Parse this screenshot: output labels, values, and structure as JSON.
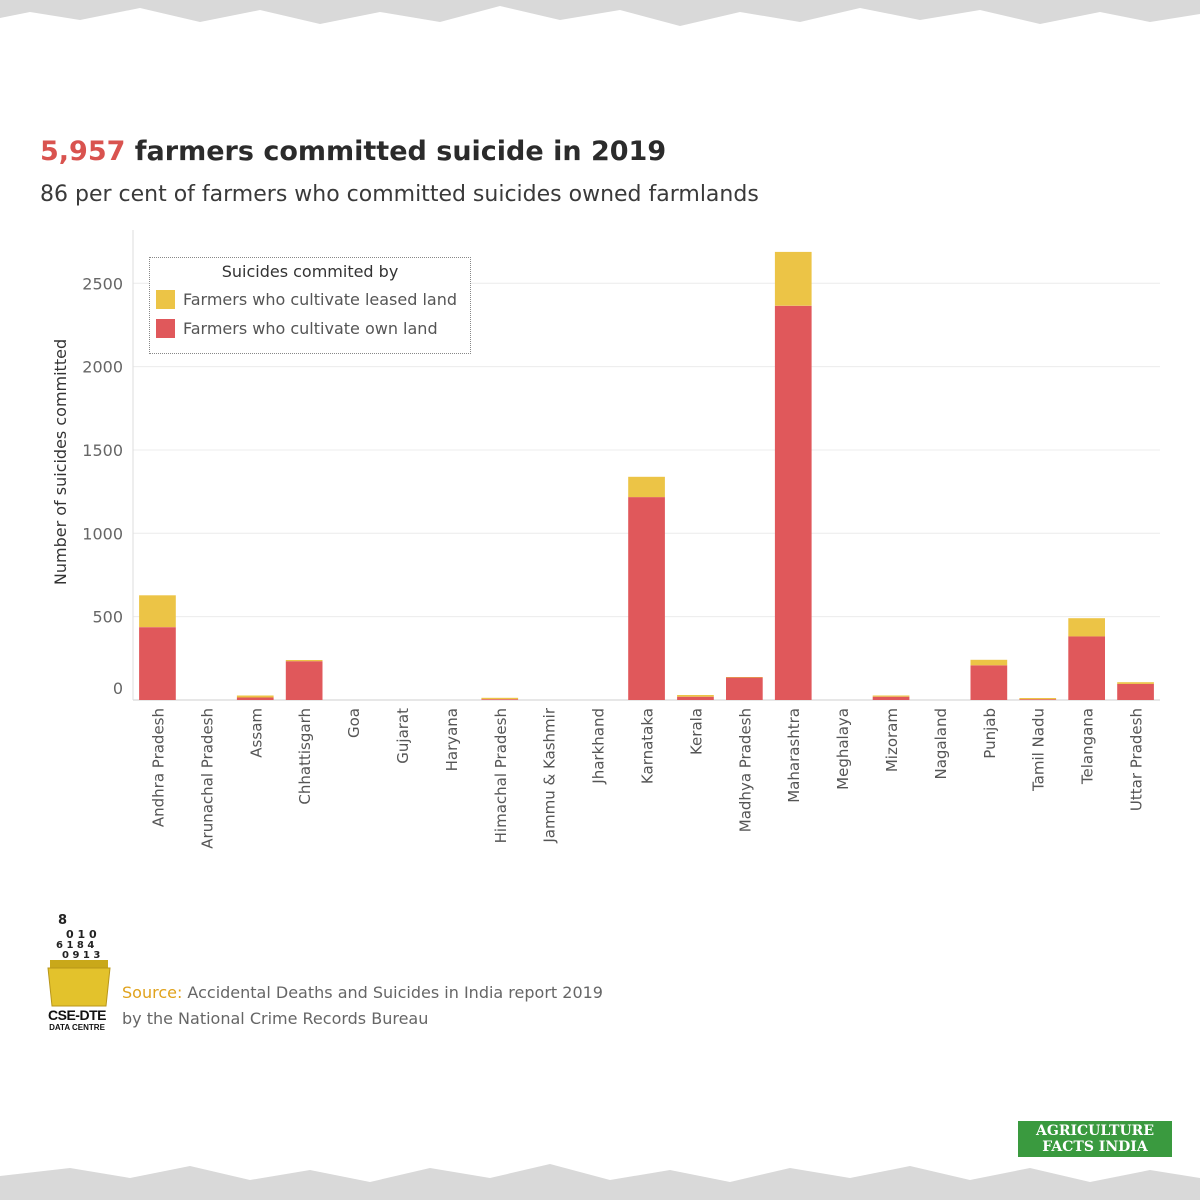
{
  "header": {
    "title_highlight": "5,957",
    "title_rest": " farmers committed suicide in 2019",
    "subtitle": "86 per cent of farmers who committed suicides owned farmlands"
  },
  "legend": {
    "title": "Suicides commited by",
    "items": [
      {
        "label": "Farmers who cultivate leased land",
        "color": "#ecc446"
      },
      {
        "label": "Farmers who cultivate own land",
        "color": "#e0585b"
      }
    ]
  },
  "chart_data": {
    "type": "bar",
    "stacked": true,
    "ylabel": "Number of suicides committed",
    "ylim": [
      0,
      2800
    ],
    "yticks": [
      0,
      500,
      1000,
      1500,
      2000,
      2500
    ],
    "grid": true,
    "legend_position": "top-left",
    "categories": [
      "Andhra Pradesh",
      "Arunachal Pradesh",
      "Assam",
      "Chhattisgarh",
      "Goa",
      "Gujarat",
      "Haryana",
      "Himachal Pradesh",
      "Jammu & Kashmir",
      "Jharkhand",
      "Karnataka",
      "Kerala",
      "Madhya Pradesh",
      "Maharashtra",
      "Meghalaya",
      "Mizoram",
      "Nagaland",
      "Punjab",
      "Tamil Nadu",
      "Telangana",
      "Uttar Pradesh"
    ],
    "series": [
      {
        "name": "Farmers who cultivate own land",
        "color": "#e0585b",
        "values": [
          437,
          0,
          15,
          233,
          0,
          0,
          0,
          5,
          0,
          0,
          1217,
          20,
          135,
          2365,
          0,
          20,
          0,
          208,
          5,
          382,
          97
        ]
      },
      {
        "name": "Farmers who cultivate leased land",
        "color": "#ecc446",
        "values": [
          191,
          0,
          12,
          7,
          0,
          0,
          0,
          8,
          0,
          0,
          122,
          10,
          3,
          323,
          0,
          7,
          0,
          33,
          7,
          109,
          10
        ]
      }
    ]
  },
  "source": {
    "line1_prefix": "Source:",
    "line1_rest": " Accidental Deaths and Suicides in India report 2019",
    "line2": "by the National Crime Records Bureau"
  },
  "logo": {
    "name": "CSE-DTE",
    "sub": "DATA CENTRE"
  },
  "badge": {
    "line1": "AGRICULTURE",
    "line2": "FACTS INDIA"
  }
}
